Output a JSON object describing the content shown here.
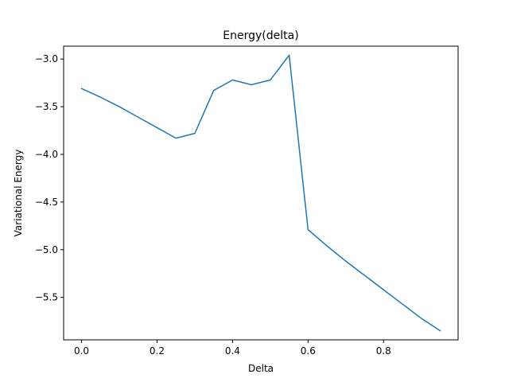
{
  "chart_data": {
    "type": "line",
    "title": "Energy(delta)",
    "xlabel": "Delta",
    "ylabel": "Variational Energy",
    "xlim": [
      -0.0475,
      0.9975
    ],
    "ylim": [
      -5.945,
      -2.865
    ],
    "xticks": [
      0.0,
      0.2,
      0.4,
      0.6,
      0.8
    ],
    "xtick_labels": [
      "0.0",
      "0.2",
      "0.4",
      "0.6",
      "0.8"
    ],
    "yticks": [
      -3.0,
      -3.5,
      -4.0,
      -4.5,
      -5.0,
      -5.5
    ],
    "ytick_labels": [
      "−3.0",
      "−3.5",
      "−4.0",
      "−4.5",
      "−5.0",
      "−5.5"
    ],
    "grid": false,
    "series": [
      {
        "color": "#1f77b4",
        "x": [
          0.0,
          0.05,
          0.1,
          0.15,
          0.2,
          0.25,
          0.3,
          0.35,
          0.4,
          0.45,
          0.5,
          0.55,
          0.6,
          0.65,
          0.7,
          0.75,
          0.8,
          0.85,
          0.9,
          0.95
        ],
        "y": [
          -3.31,
          -3.4,
          -3.5,
          -3.61,
          -3.72,
          -3.83,
          -3.78,
          -3.33,
          -3.22,
          -3.27,
          -3.22,
          -2.96,
          -4.79,
          -4.96,
          -5.12,
          -5.27,
          -5.42,
          -5.57,
          -5.72,
          -5.85
        ]
      }
    ]
  }
}
